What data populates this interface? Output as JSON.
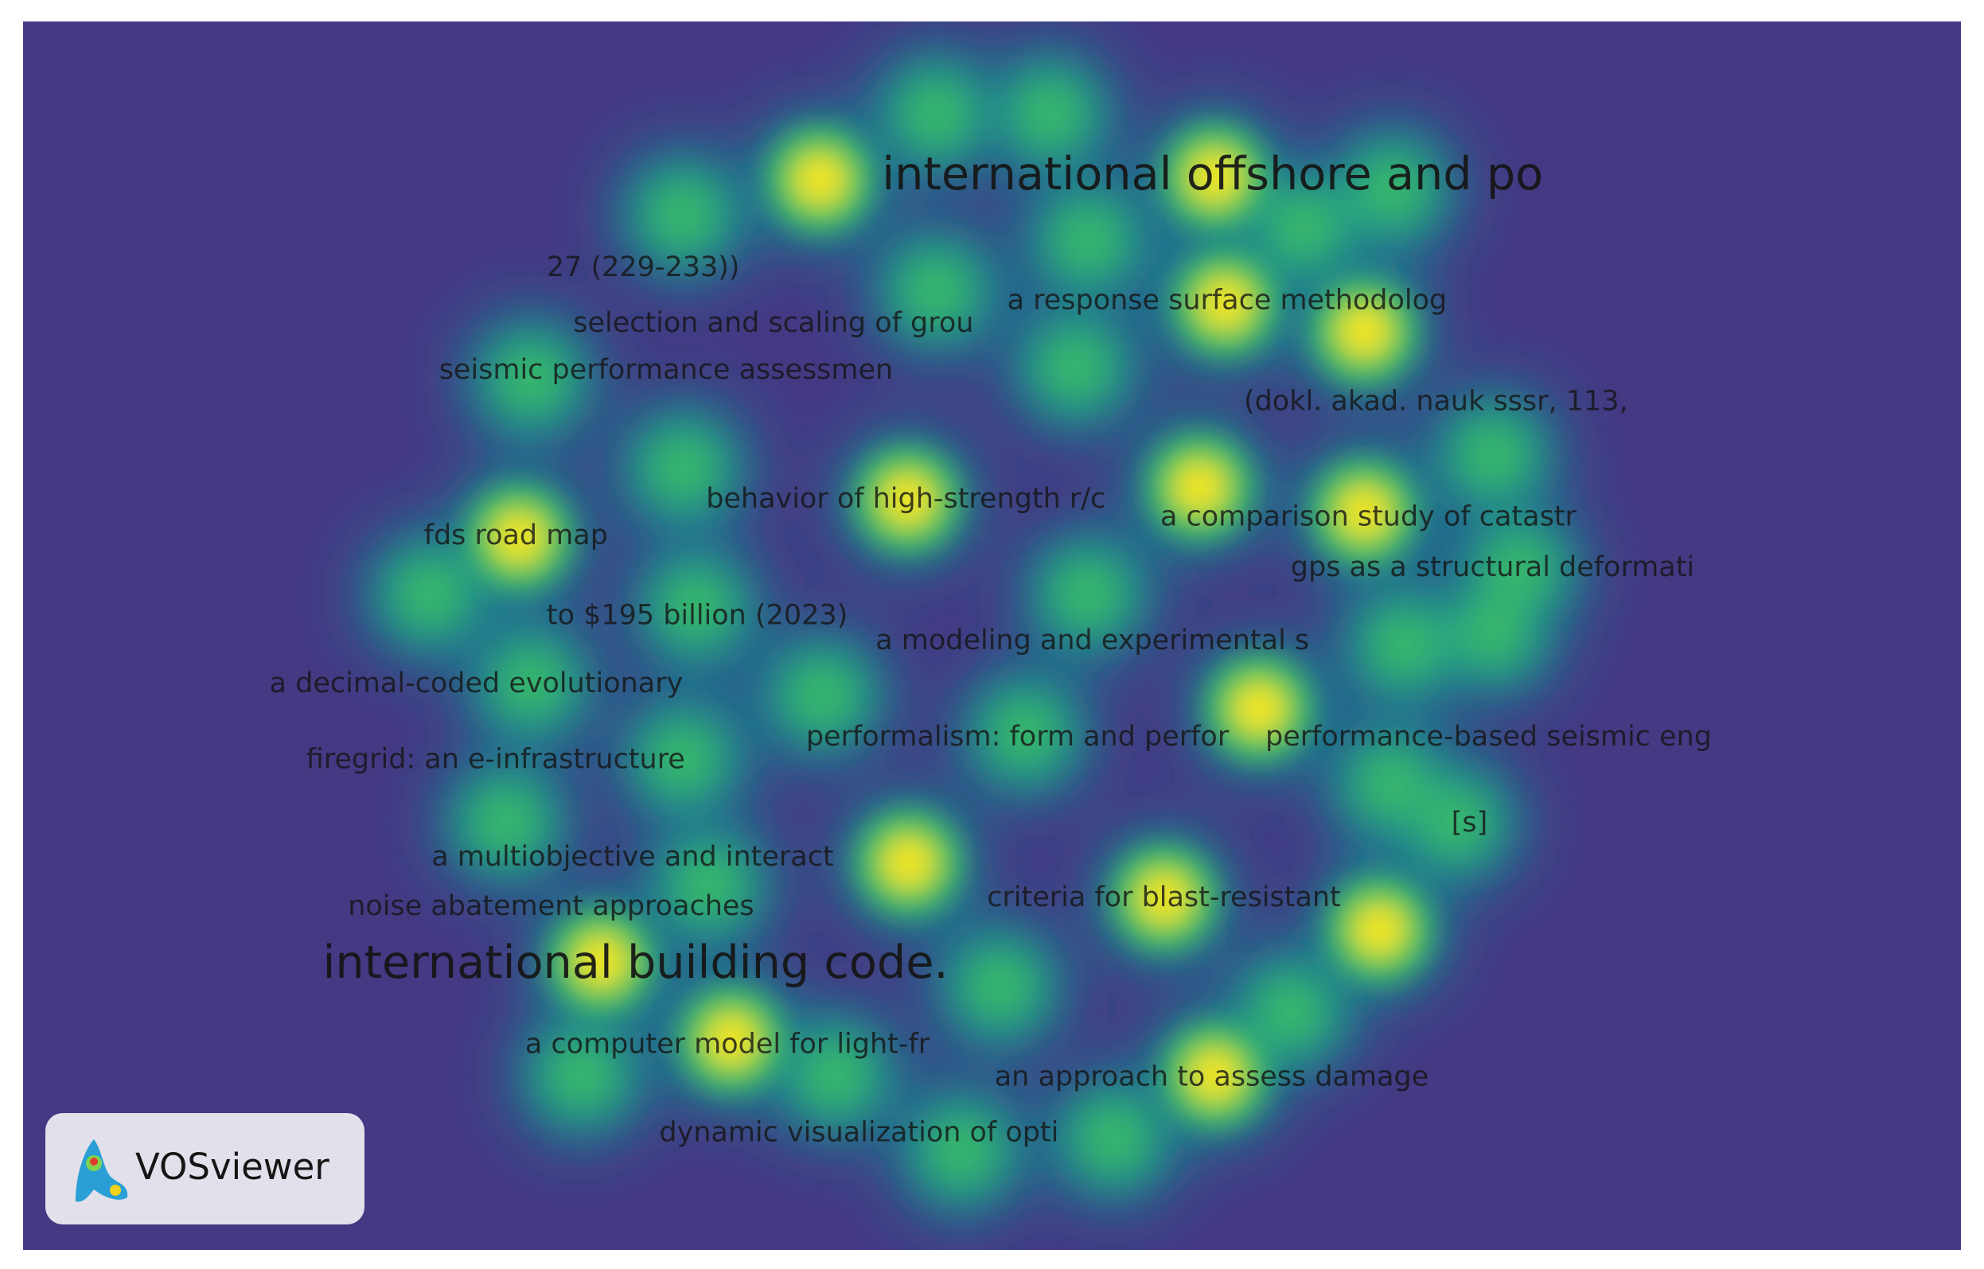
{
  "labels": [
    "international offshore and po",
    "27 (229-233))",
    "selection and scaling of grou",
    "a response surface methodolog",
    "seismic performance assessmen",
    "(dokl. akad. nauk sssr, 113,",
    "behavior of high-strength r/c",
    "a comparison study of catastr",
    "fds road map",
    "gps as a structural deformati",
    "to $195 billion (2023)",
    "a modeling and experimental s",
    "a decimal-coded evolutionary",
    "performalism: form and perfor",
    "performance-based seismic eng",
    "firegrid: an e-infrastructure",
    "[s]",
    "a multiobjective and interact",
    "criteria for blast-resistant",
    "noise abatement approaches",
    "international building code.",
    "a computer model for light-fr",
    "an approach to assess damage",
    "dynamic visualization of opti"
  ],
  "logo": {
    "text": "VOSviewer"
  }
}
